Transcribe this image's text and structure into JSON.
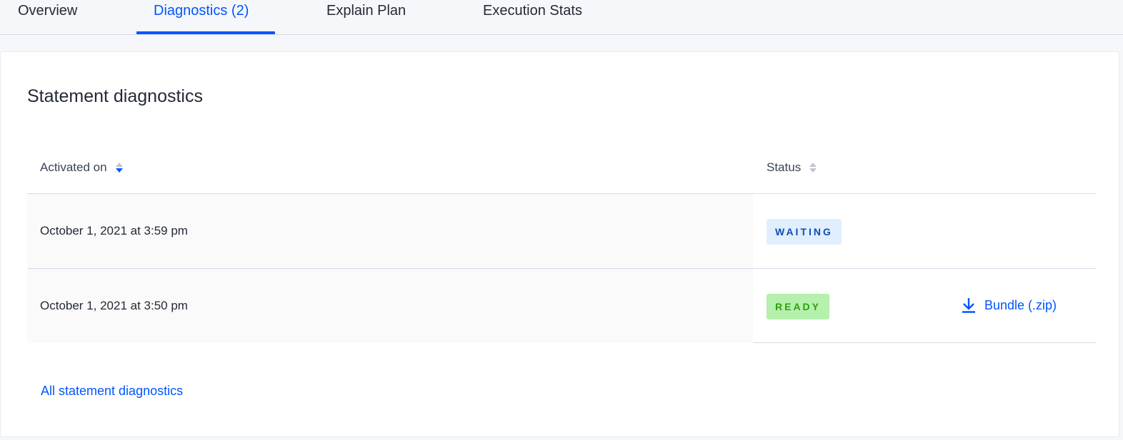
{
  "tabs": [
    {
      "label": "Overview",
      "active": false
    },
    {
      "label": "Diagnostics (2)",
      "active": true
    },
    {
      "label": "Explain Plan",
      "active": false
    },
    {
      "label": "Execution Stats",
      "active": false
    }
  ],
  "card": {
    "title": "Statement diagnostics",
    "columns": [
      {
        "label": "Activated on",
        "sort": "descending"
      },
      {
        "label": "Status",
        "sort": "none"
      }
    ],
    "rows": [
      {
        "activated_on": "October 1, 2021 at 3:59 pm",
        "status": "WAITING",
        "download": null
      },
      {
        "activated_on": "October 1, 2021 at 3:50 pm",
        "status": "READY",
        "download": "Bundle (.zip)"
      }
    ],
    "all_link": "All statement diagnostics"
  },
  "colors": {
    "accent": "#0055ff",
    "waiting_bg": "#e1eefd",
    "ready_bg": "#b5f0ac"
  }
}
